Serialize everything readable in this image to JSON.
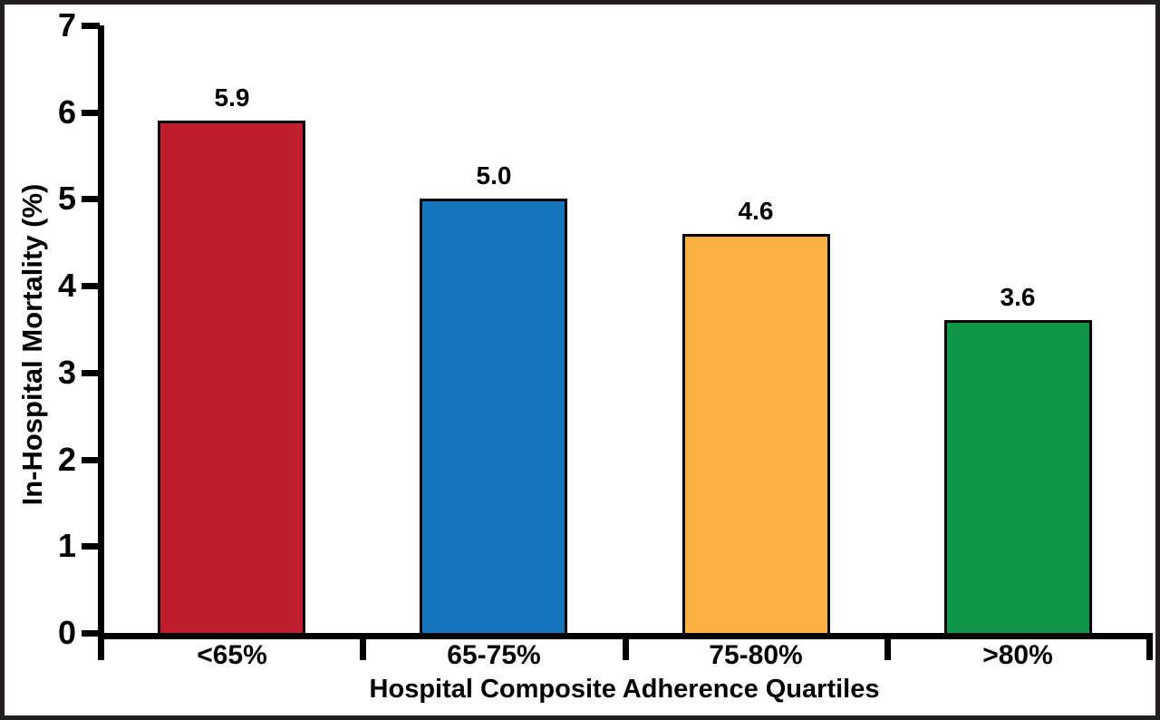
{
  "figure": {
    "background_color": "#ffffff",
    "frame_color": "#231f20",
    "axis_color": "#000000",
    "text_color": "#000000"
  },
  "chart_data": {
    "type": "bar",
    "xlabel": "Hospital Composite Adherence Quartiles",
    "ylabel": "In-Hospital Mortality (%)",
    "categories": [
      "<65%",
      "65-75%",
      "75-80%",
      ">80%"
    ],
    "values": [
      5.9,
      5.0,
      4.6,
      3.6
    ],
    "value_labels": [
      "5.9",
      "5.0",
      "4.6",
      "3.6"
    ],
    "bar_colors": [
      "#be1e2d",
      "#1475bc",
      "#fbb042",
      "#0f9548"
    ],
    "ylim": [
      0,
      7
    ],
    "yticks": [
      0,
      1,
      2,
      3,
      4,
      5,
      6,
      7
    ],
    "ytick_labels": [
      "0",
      "1",
      "2",
      "3",
      "4",
      "5",
      "6",
      "7"
    ],
    "grid": false,
    "legend_position": "none"
  }
}
